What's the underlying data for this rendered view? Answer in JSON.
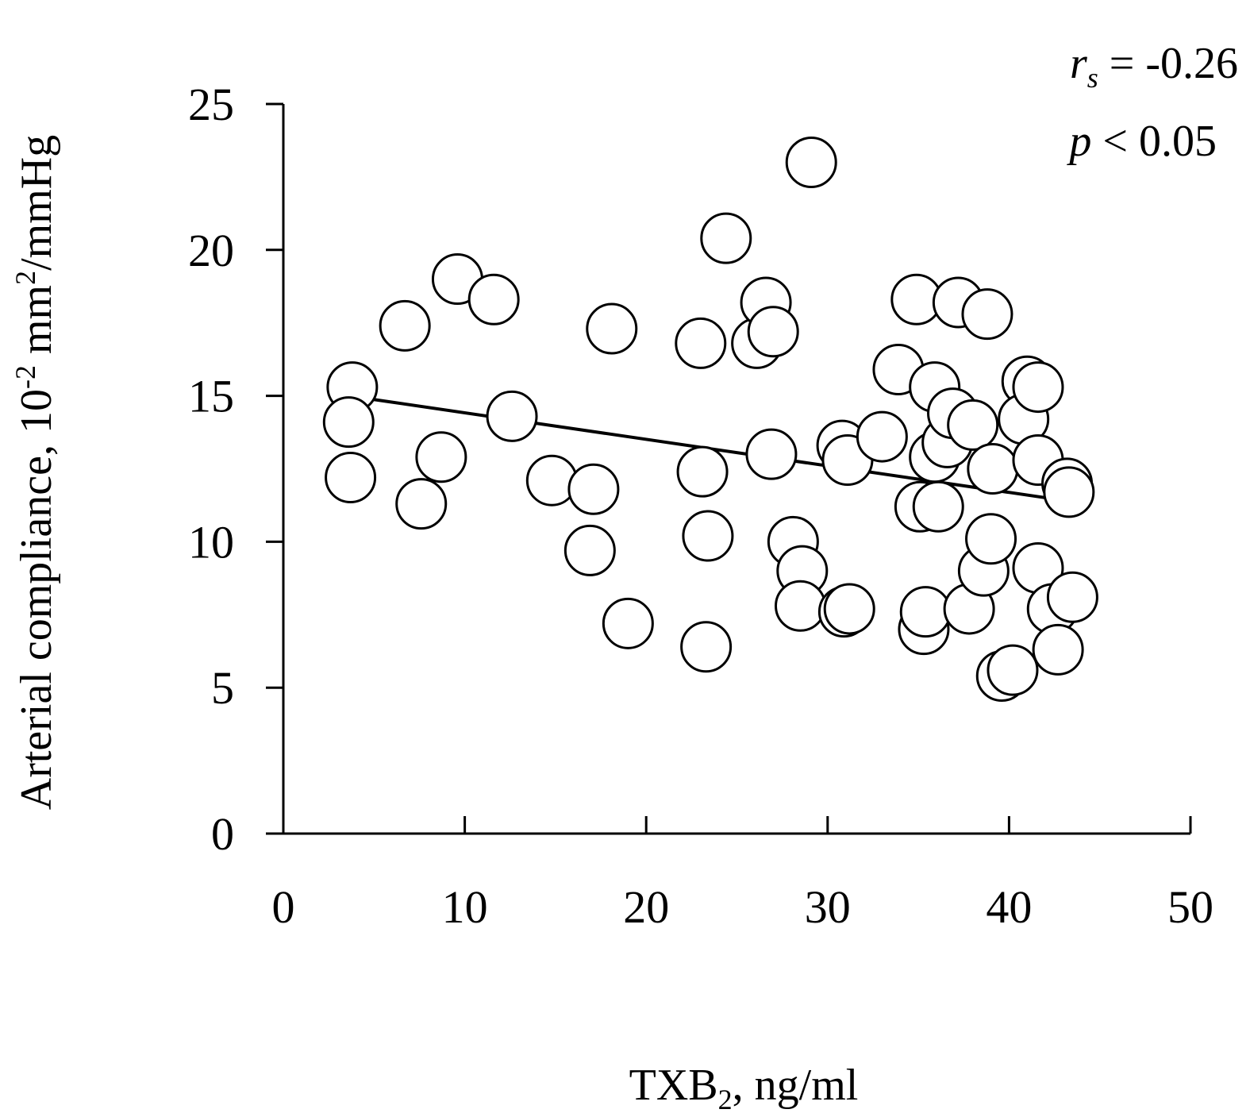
{
  "chart_data": {
    "type": "scatter",
    "xlabel": {
      "main": "TXB",
      "sub": "2",
      "rest": ", ng/ml"
    },
    "ylabel": {
      "main": "Arterial compliance,  10",
      "sup1": "-2",
      "mid": " mm",
      "sup2": "2",
      "rest": "/mmHg"
    },
    "annotation": {
      "line1": {
        "r": "r",
        "sub": "s",
        "rest": " = -0.26"
      },
      "line2": {
        "p": "p",
        "rest": " < 0.05"
      }
    },
    "xlim": [
      0,
      50
    ],
    "ylim": [
      0,
      25
    ],
    "xticks": [
      0,
      10,
      20,
      30,
      40,
      50
    ],
    "yticks": [
      0,
      5,
      10,
      15,
      20,
      25
    ],
    "grid": false,
    "marker": "open-circle",
    "regression": {
      "x": [
        3.6,
        43.2
      ],
      "y": [
        15.0,
        11.4
      ]
    },
    "points": [
      [
        3.8,
        15.3
      ],
      [
        3.6,
        14.1
      ],
      [
        3.7,
        12.2
      ],
      [
        6.7,
        17.4
      ],
      [
        7.6,
        11.3
      ],
      [
        8.7,
        12.9
      ],
      [
        9.6,
        19.0
      ],
      [
        11.6,
        18.3
      ],
      [
        12.6,
        14.3
      ],
      [
        14.8,
        12.1
      ],
      [
        16.9,
        9.7
      ],
      [
        17.1,
        11.8
      ],
      [
        18.1,
        17.3
      ],
      [
        19.0,
        7.2
      ],
      [
        23.0,
        16.8
      ],
      [
        23.1,
        12.4
      ],
      [
        23.4,
        10.2
      ],
      [
        23.3,
        6.4
      ],
      [
        24.4,
        20.4
      ],
      [
        26.1,
        16.8
      ],
      [
        26.6,
        18.2
      ],
      [
        27.0,
        17.2
      ],
      [
        26.9,
        13.0
      ],
      [
        28.1,
        10.0
      ],
      [
        28.6,
        9.0
      ],
      [
        28.5,
        7.8
      ],
      [
        29.1,
        23.0
      ],
      [
        30.8,
        13.3
      ],
      [
        31.1,
        12.8
      ],
      [
        30.9,
        7.6
      ],
      [
        31.2,
        7.7
      ],
      [
        33.0,
        13.6
      ],
      [
        33.9,
        15.9
      ],
      [
        34.9,
        18.3
      ],
      [
        35.1,
        11.2
      ],
      [
        35.3,
        7.0
      ],
      [
        35.4,
        7.6
      ],
      [
        35.9,
        15.3
      ],
      [
        35.9,
        12.9
      ],
      [
        36.1,
        11.2
      ],
      [
        36.6,
        13.4
      ],
      [
        36.9,
        14.4
      ],
      [
        37.2,
        18.2
      ],
      [
        38.0,
        14.0
      ],
      [
        37.8,
        7.7
      ],
      [
        38.8,
        17.8
      ],
      [
        38.6,
        9.0
      ],
      [
        39.0,
        10.1
      ],
      [
        39.1,
        12.5
      ],
      [
        39.6,
        5.4
      ],
      [
        40.2,
        5.6
      ],
      [
        41.0,
        15.5
      ],
      [
        40.8,
        14.2
      ],
      [
        41.6,
        15.3
      ],
      [
        41.6,
        12.8
      ],
      [
        41.6,
        9.1
      ],
      [
        42.4,
        7.7
      ],
      [
        42.7,
        6.3
      ],
      [
        43.2,
        12.0
      ],
      [
        43.3,
        11.7
      ],
      [
        43.5,
        8.1
      ]
    ]
  }
}
